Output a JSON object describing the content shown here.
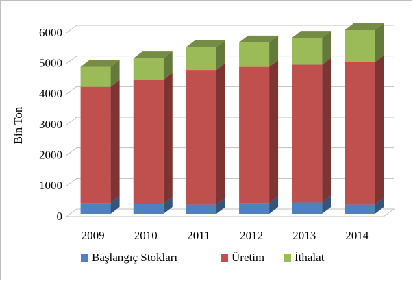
{
  "chart_data": {
    "type": "bar3d_stacked",
    "y_label": "Bin Ton",
    "categories": [
      "2009",
      "2010",
      "2011",
      "2012",
      "2013",
      "2014"
    ],
    "series": [
      {
        "name": "Başlangıç Stokları",
        "color": "#4f81bd",
        "values": [
          350,
          330,
          300,
          350,
          370,
          300
        ]
      },
      {
        "name": "Üretim",
        "color": "#c0504d",
        "values": [
          3800,
          4050,
          4400,
          4450,
          4500,
          4650
        ]
      },
      {
        "name": "İthalat",
        "color": "#9bbb59",
        "values": [
          650,
          700,
          750,
          800,
          880,
          1050
        ]
      }
    ],
    "ylim": [
      0,
      6000
    ],
    "yticks": [
      0,
      1000,
      2000,
      3000,
      4000,
      5000,
      6000
    ],
    "grid": true
  }
}
